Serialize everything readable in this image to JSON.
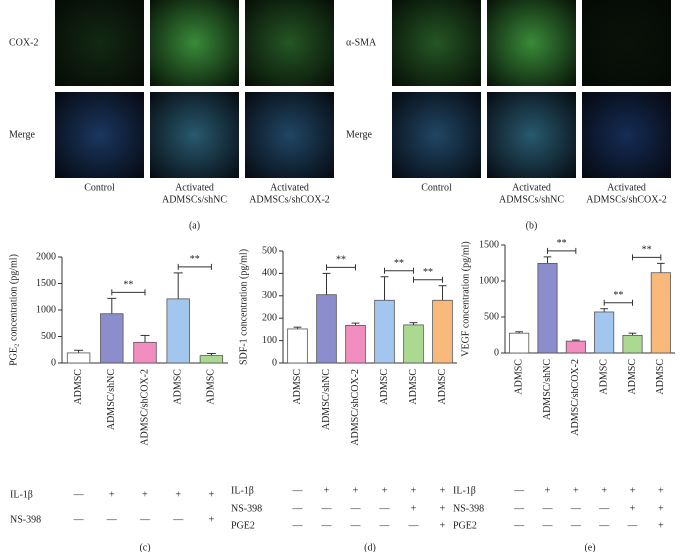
{
  "panels": [
    {
      "label": "(a)",
      "rows": [
        "COX-2",
        "Merge"
      ],
      "columns": [
        [
          "Control"
        ],
        [
          "Activated",
          "ADMSCs/shNC"
        ],
        [
          "Activated",
          "ADMSCs/shCOX-2"
        ]
      ]
    },
    {
      "label": "(b)",
      "rows": [
        "α-SMA",
        "Merge"
      ],
      "columns": [
        [
          "Control"
        ],
        [
          "Activated",
          "ADMSCs/shNC"
        ],
        [
          "Activated",
          "ADMSCs/shCOX-2"
        ]
      ]
    }
  ],
  "chart_data": [
    {
      "type": "bar",
      "label": "(c)",
      "ylabel": "PGE₂ concentration (pg/ml)",
      "categories": [
        "ADMSC",
        "ADMSC/shNC",
        "ADMSC/shCOX-2",
        "ADMSC",
        "ADMSC"
      ],
      "values": [
        190,
        930,
        390,
        1210,
        140
      ],
      "errors": [
        50,
        290,
        130,
        490,
        40
      ],
      "colors": [
        "#ffffff",
        "#8b8dcc",
        "#f28dbf",
        "#a3c6ee",
        "#abd991"
      ],
      "ylim": [
        0,
        2000
      ],
      "yticks": [
        0,
        500,
        1000,
        1500,
        2000
      ],
      "significance": [
        {
          "from": 1,
          "to": 2,
          "label": "**"
        },
        {
          "from": 3,
          "to": 4,
          "label": "**"
        }
      ],
      "treatments": [
        {
          "label": "IL-1β",
          "values": [
            "—",
            "+",
            "+",
            "+",
            "+"
          ]
        },
        {
          "label": "NS-398",
          "values": [
            "—",
            "—",
            "—",
            "—",
            "+"
          ]
        }
      ]
    },
    {
      "type": "bar",
      "label": "(d)",
      "ylabel": "SDF-1 concentration (pg/ml)",
      "categories": [
        "ADMSC",
        "ADMSC/shNC",
        "ADMSC/shCOX-2",
        "ADMSC",
        "ADMSC",
        "ADMSC"
      ],
      "values": [
        152,
        305,
        168,
        280,
        170,
        280
      ],
      "errors": [
        8,
        95,
        10,
        105,
        10,
        65
      ],
      "colors": [
        "#ffffff",
        "#8b8dcc",
        "#f28dbf",
        "#a3c6ee",
        "#abd991",
        "#f9b97a"
      ],
      "ylim": [
        0,
        500
      ],
      "yticks": [
        0,
        100,
        200,
        300,
        400,
        500
      ],
      "significance": [
        {
          "from": 1,
          "to": 2,
          "label": "**"
        },
        {
          "from": 3,
          "to": 4,
          "label": "**"
        },
        {
          "from": 4,
          "to": 5,
          "label": "**"
        }
      ],
      "treatments": [
        {
          "label": "IL-1β",
          "values": [
            "—",
            "+",
            "+",
            "+",
            "+",
            "+"
          ]
        },
        {
          "label": "NS-398",
          "values": [
            "—",
            "—",
            "—",
            "—",
            "+",
            "+"
          ]
        },
        {
          "label": "PGE2",
          "values": [
            "—",
            "—",
            "—",
            "—",
            "—",
            "+"
          ]
        }
      ]
    },
    {
      "type": "bar",
      "label": "(e)",
      "ylabel": "VEGF concentration (pg/ml)",
      "categories": [
        "ADMSC",
        "ADMSC/shNC",
        "ADMSC/shCOX-2",
        "ADMSC",
        "ADMSC",
        "ADMSC"
      ],
      "values": [
        275,
        1245,
        165,
        570,
        245,
        1115
      ],
      "errors": [
        20,
        90,
        15,
        45,
        30,
        130
      ],
      "colors": [
        "#ffffff",
        "#8b8dcc",
        "#f28dbf",
        "#a3c6ee",
        "#abd991",
        "#f9b97a"
      ],
      "ylim": [
        0,
        1500
      ],
      "yticks": [
        0,
        500,
        1000,
        1500
      ],
      "significance": [
        {
          "from": 1,
          "to": 2,
          "label": "**"
        },
        {
          "from": 3,
          "to": 4,
          "label": "**"
        },
        {
          "from": 4,
          "to": 5,
          "label": "**"
        }
      ],
      "treatments": [
        {
          "label": "IL-1β",
          "values": [
            "—",
            "+",
            "+",
            "+",
            "+",
            "+"
          ]
        },
        {
          "label": "NS-398",
          "values": [
            "—",
            "—",
            "—",
            "—",
            "+",
            "+"
          ]
        },
        {
          "label": "PGE2",
          "values": [
            "—",
            "—",
            "—",
            "—",
            "—",
            "+"
          ]
        }
      ]
    }
  ]
}
